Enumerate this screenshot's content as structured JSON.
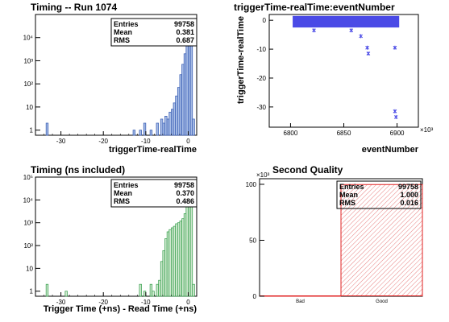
{
  "chart_data": [
    {
      "type": "histogram",
      "title": "Timing -- Run 1074",
      "xlabel": "triggerTime-realTime",
      "ylabel": "",
      "xlim": [
        -36,
        2
      ],
      "ylim": [
        0.6,
        100000
      ],
      "yscale": "log",
      "x_ticks": [
        "-30",
        "-20",
        "-10",
        "0"
      ],
      "y_ticks": [
        "1",
        "10",
        "10²",
        "10³",
        "10⁴"
      ],
      "bin_width": 0.5,
      "bins": [
        {
          "x": -33.5,
          "y": 2
        },
        {
          "x": -13.0,
          "y": 1
        },
        {
          "x": -11.5,
          "y": 1
        },
        {
          "x": -10.5,
          "y": 2
        },
        {
          "x": -9.0,
          "y": 1
        },
        {
          "x": -7.5,
          "y": 2
        },
        {
          "x": -6.5,
          "y": 3
        },
        {
          "x": -6.0,
          "y": 2
        },
        {
          "x": -5.5,
          "y": 4
        },
        {
          "x": -5.0,
          "y": 3
        },
        {
          "x": -4.5,
          "y": 6
        },
        {
          "x": -4.0,
          "y": 8
        },
        {
          "x": -3.5,
          "y": 15
        },
        {
          "x": -3.0,
          "y": 30
        },
        {
          "x": -2.5,
          "y": 70
        },
        {
          "x": -2.0,
          "y": 250
        },
        {
          "x": -1.5,
          "y": 700
        },
        {
          "x": -1.0,
          "y": 2000
        },
        {
          "x": -0.5,
          "y": 8000
        },
        {
          "x": 0.0,
          "y": 50000
        },
        {
          "x": 0.5,
          "y": 30000
        },
        {
          "x": 1.0,
          "y": 3
        }
      ],
      "stats": {
        "entries_label": "Entries",
        "entries": "99758",
        "mean_label": "Mean",
        "mean": "0.381",
        "rms_label": "RMS",
        "rms": "0.687"
      },
      "fill_color": "#a8bde6",
      "line_color": "#2f55b0"
    },
    {
      "type": "scatter",
      "title": "triggerTime-realTime:eventNumber",
      "xlabel": "eventNumber",
      "ylabel": "triggerTime-realTime",
      "x_multiplier": "×10³",
      "xlim": [
        6780,
        6920
      ],
      "ylim": [
        -37,
        2
      ],
      "x_ticks": [
        "6800",
        "6850",
        "6900"
      ],
      "y_ticks": [
        "0",
        "-10",
        "-20",
        "-30"
      ],
      "dense_band": {
        "x_from": 6802,
        "x_to": 6902,
        "y_from": -2.5,
        "y_to": 1.5
      },
      "points": [
        {
          "x": 6822,
          "y": -3.5
        },
        {
          "x": 6857,
          "y": -3.5
        },
        {
          "x": 6866,
          "y": -5.5
        },
        {
          "x": 6872,
          "y": -9.5
        },
        {
          "x": 6873,
          "y": -11.5
        },
        {
          "x": 6898,
          "y": -9.5
        },
        {
          "x": 6898,
          "y": -31.5
        },
        {
          "x": 6899,
          "y": -33.5
        }
      ],
      "marker_color": "#4a4ae6"
    },
    {
      "type": "histogram",
      "title": "Timing (ns included)",
      "xlabel": "Trigger Time (+ns) - Read Time (+ns)",
      "ylabel": "",
      "xlim": [
        -36,
        2
      ],
      "ylim": [
        0.6,
        100000
      ],
      "yscale": "log",
      "x_ticks": [
        "-30",
        "-20",
        "-10",
        "0"
      ],
      "y_ticks": [
        "1",
        "10",
        "10²",
        "10³",
        "10⁴",
        "10⁵"
      ],
      "bin_width": 0.5,
      "bins": [
        {
          "x": -33.5,
          "y": 2
        },
        {
          "x": -29.0,
          "y": 1
        },
        {
          "x": -11.5,
          "y": 2
        },
        {
          "x": -10.5,
          "y": 1
        },
        {
          "x": -9.0,
          "y": 2
        },
        {
          "x": -8.5,
          "y": 1
        },
        {
          "x": -7.5,
          "y": 2
        },
        {
          "x": -7.0,
          "y": 3
        },
        {
          "x": -6.5,
          "y": 20
        },
        {
          "x": -6.0,
          "y": 60
        },
        {
          "x": -5.5,
          "y": 200
        },
        {
          "x": -5.0,
          "y": 400
        },
        {
          "x": -4.5,
          "y": 500
        },
        {
          "x": -4.0,
          "y": 600
        },
        {
          "x": -3.5,
          "y": 700
        },
        {
          "x": -3.0,
          "y": 900
        },
        {
          "x": -2.5,
          "y": 1000
        },
        {
          "x": -2.0,
          "y": 1200
        },
        {
          "x": -1.5,
          "y": 1500
        },
        {
          "x": -1.0,
          "y": 2500
        },
        {
          "x": -0.5,
          "y": 6000
        },
        {
          "x": 0.0,
          "y": 40000
        },
        {
          "x": 0.5,
          "y": 15000
        },
        {
          "x": 1.0,
          "y": 2
        }
      ],
      "stats": {
        "entries_label": "Entries",
        "entries": "99758",
        "mean_label": "Mean",
        "mean": "0.370",
        "rms_label": "RMS",
        "rms": "0.486"
      },
      "fill_color": "#cfe9cf",
      "line_color": "#2e9a45"
    },
    {
      "type": "bar",
      "title": "Second Quality",
      "xlabel": "",
      "ylabel": "",
      "y_multiplier": "×10³",
      "categories": [
        "Bad",
        "Good"
      ],
      "values": [
        0,
        99758
      ],
      "ylim": [
        0,
        105000
      ],
      "y_ticks": [
        "0",
        "50",
        "100"
      ],
      "y_tick_values": [
        0,
        50000,
        100000
      ],
      "stats": {
        "entries_label": "Entries",
        "entries": "99758",
        "mean_label": "Mean",
        "mean": "1.000",
        "rms_label": "RMS",
        "rms": "0.016"
      },
      "line_color": "#e02020",
      "hatch_color": "#e88080"
    }
  ]
}
